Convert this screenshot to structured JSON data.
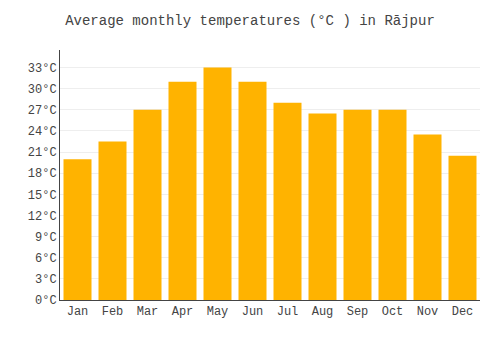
{
  "chart_data": {
    "type": "bar",
    "title": "Average monthly temperatures (°C ) in Rājpur",
    "categories": [
      "Jan",
      "Feb",
      "Mar",
      "Apr",
      "May",
      "Jun",
      "Jul",
      "Aug",
      "Sep",
      "Oct",
      "Nov",
      "Dec"
    ],
    "values": [
      20,
      22.5,
      27,
      31,
      33,
      31,
      28,
      26.5,
      27,
      27,
      23.5,
      20.5
    ],
    "color": "#FFB300",
    "ylim": [
      0,
      35.5
    ],
    "yticks": [
      {
        "value": 0,
        "label": "0°C"
      },
      {
        "value": 3,
        "label": "3°C"
      },
      {
        "value": 6,
        "label": "6°C"
      },
      {
        "value": 9,
        "label": "9°C"
      },
      {
        "value": 12,
        "label": "12°C"
      },
      {
        "value": 15,
        "label": "15°C"
      },
      {
        "value": 18,
        "label": "18°C"
      },
      {
        "value": 21,
        "label": "21°C"
      },
      {
        "value": 24,
        "label": "24°C"
      },
      {
        "value": 27,
        "label": "27°C"
      },
      {
        "value": 30,
        "label": "30°C"
      },
      {
        "value": 33,
        "label": "33°C"
      }
    ],
    "grid": true
  }
}
